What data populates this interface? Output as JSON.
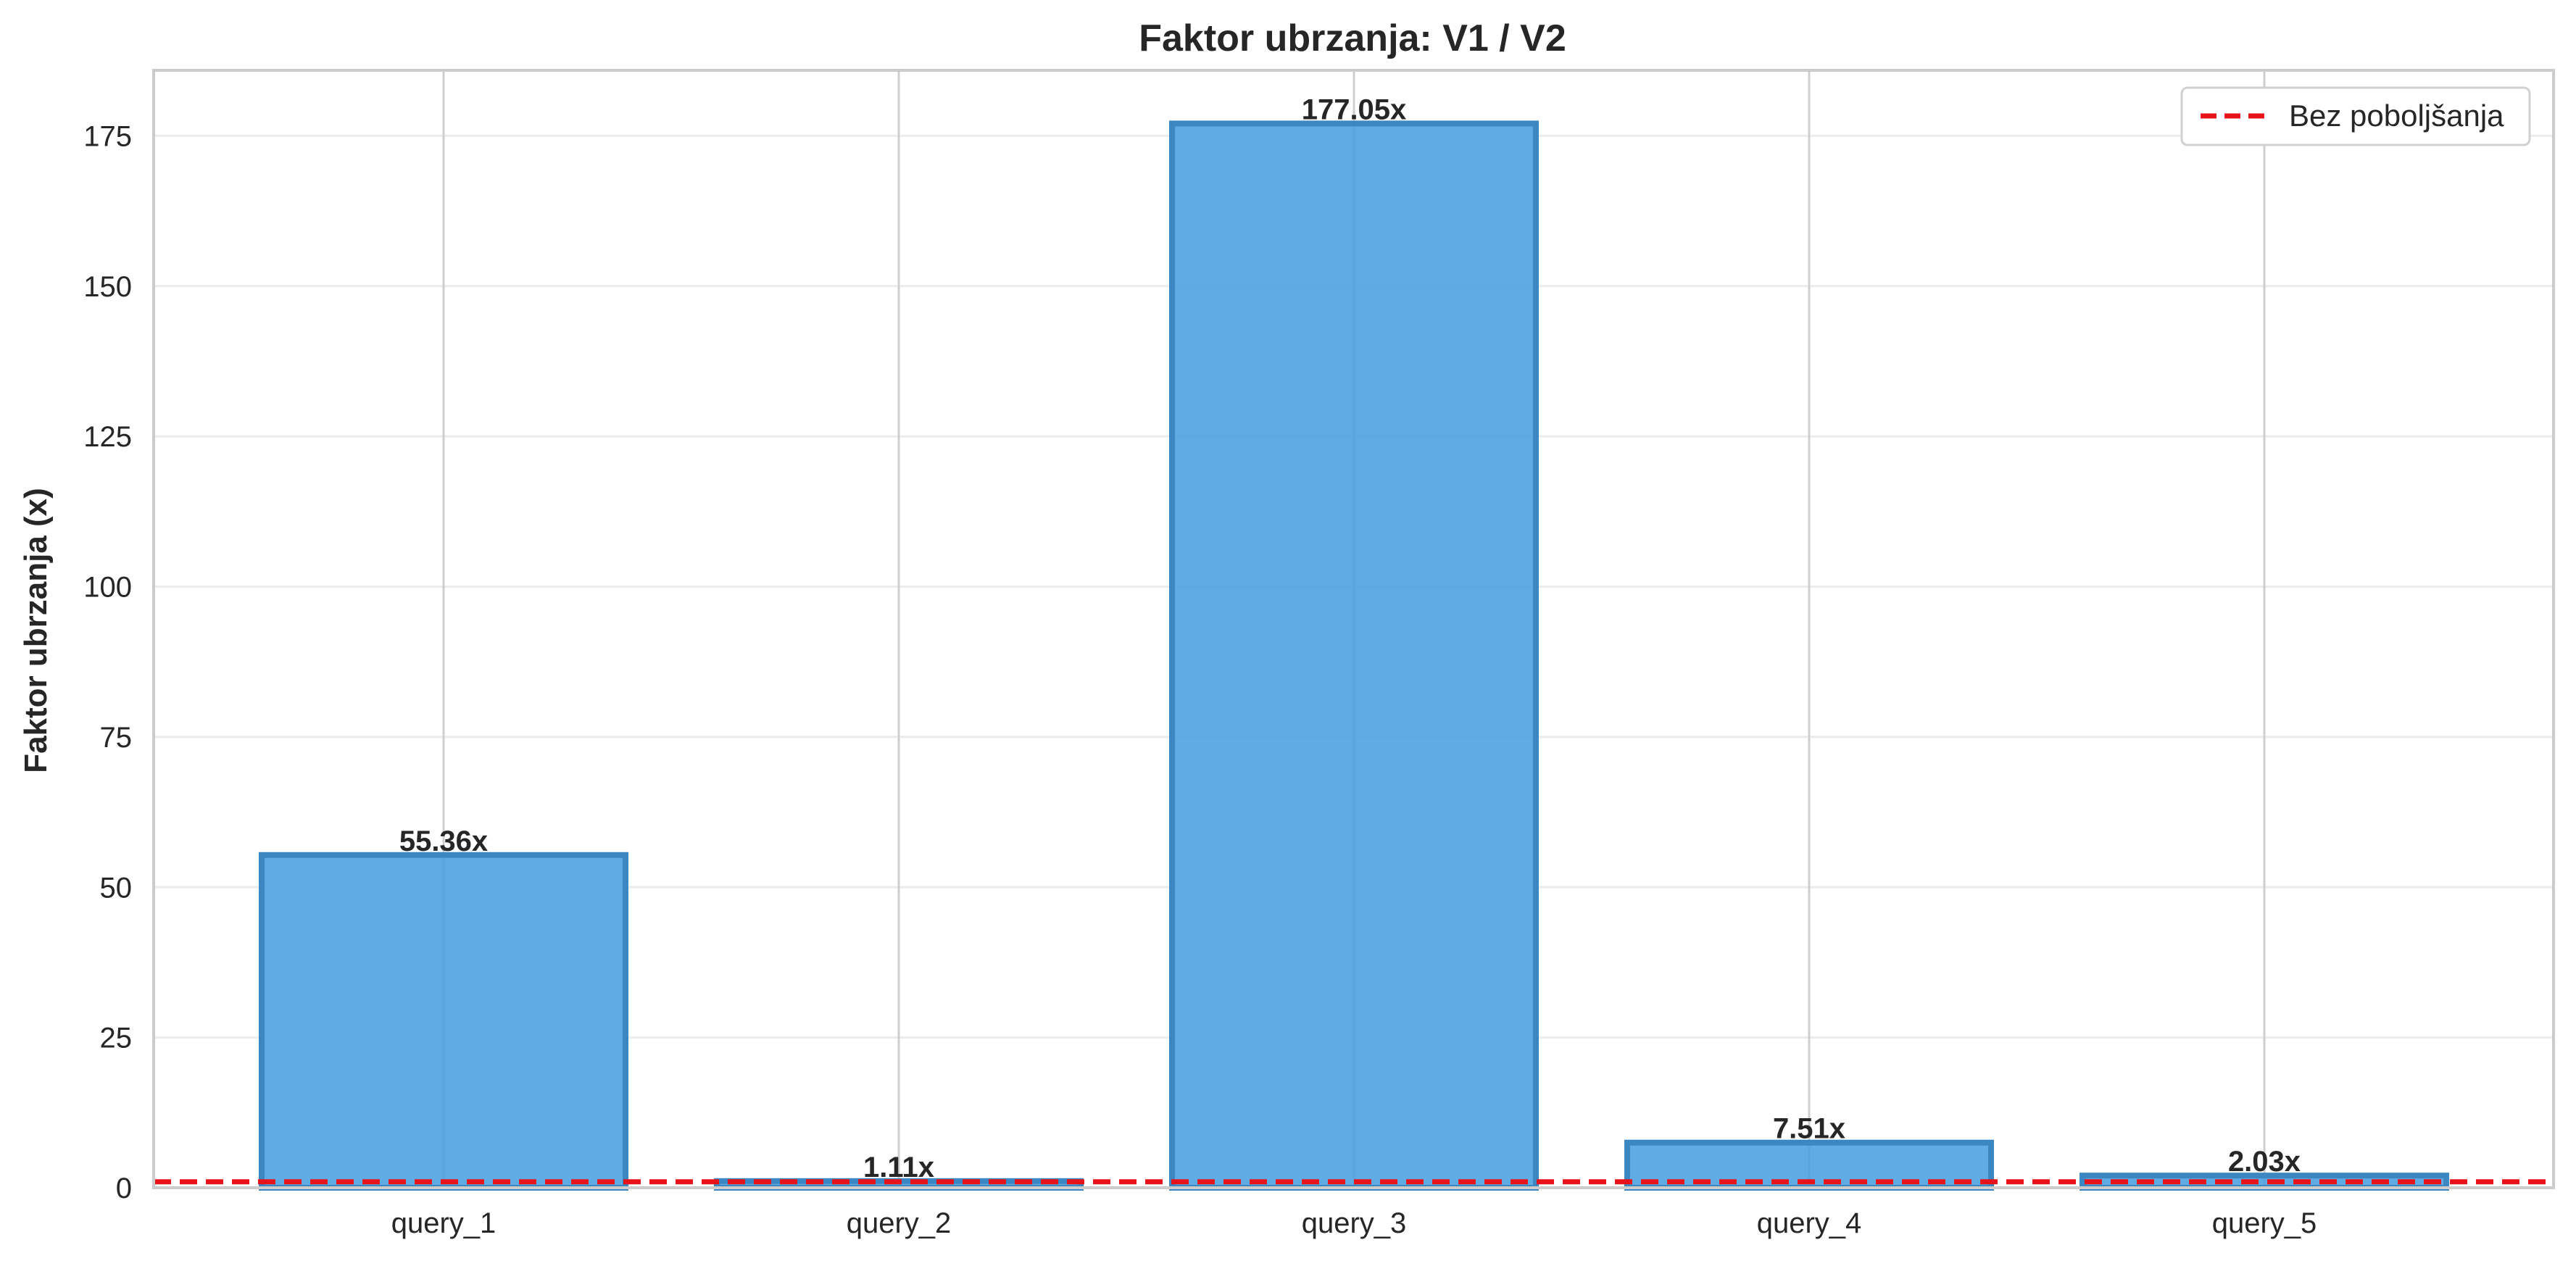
{
  "chart_data": {
    "type": "bar",
    "title": "Faktor ubrzanja: V1 / V2",
    "xlabel": "",
    "ylabel": "Faktor ubrzanja (x)",
    "categories": [
      "query_1",
      "query_2",
      "query_3",
      "query_4",
      "query_5"
    ],
    "values": [
      55.36,
      1.11,
      177.05,
      7.51,
      2.03
    ],
    "value_labels": [
      "55.36x",
      "1.11x",
      "177.05x",
      "7.51x",
      "2.03x"
    ],
    "ylim": [
      0,
      185.9
    ],
    "yticks": [
      0,
      25,
      50,
      75,
      100,
      125,
      150,
      175
    ],
    "ytick_labels": [
      "0",
      "25",
      "50",
      "75",
      "100",
      "125",
      "150",
      "175"
    ],
    "grid": true,
    "bar_color": "#4a9fdf",
    "bar_edge_color": "#3a87c4",
    "reference_line": {
      "value": 1,
      "label": "Bez poboljšanja",
      "color": "#e8131a",
      "style": "dashed"
    },
    "legend": {
      "position": "top-right",
      "entries": [
        "Bez poboljšanja"
      ]
    }
  }
}
